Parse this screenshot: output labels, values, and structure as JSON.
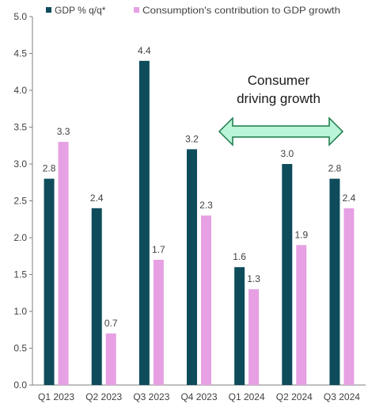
{
  "chart_data": {
    "type": "bar",
    "categories": [
      "Q1 2023",
      "Q2 2023",
      "Q3 2023",
      "Q4 2023",
      "Q1 2024",
      "Q2 2024",
      "Q3 2024"
    ],
    "series": [
      {
        "name": "GDP % q/q*",
        "color": "#0e4c5b",
        "values": [
          2.8,
          2.4,
          4.4,
          3.2,
          1.6,
          3.0,
          2.8
        ],
        "labels": [
          "2.8",
          "2.4",
          "4.4",
          "3.2",
          "1.6",
          "3.0",
          "2.8"
        ]
      },
      {
        "name": "Consumption's contribution to GDP growth",
        "color": "#e6a0e3",
        "values": [
          3.3,
          0.7,
          1.7,
          2.3,
          1.3,
          1.9,
          2.4
        ],
        "labels": [
          "3.3",
          "0.7",
          "1.7",
          "2.3",
          "1.3",
          "1.9",
          "2.4"
        ]
      }
    ],
    "ylim": [
      0,
      5
    ],
    "yticks": [
      "0.0",
      "0.5",
      "1.0",
      "1.5",
      "2.0",
      "2.5",
      "3.0",
      "3.5",
      "4.0",
      "4.5",
      "5.0"
    ],
    "grid": false,
    "legend_position": "top",
    "annotation": {
      "lines": [
        "Consumer",
        "driving growth"
      ],
      "arrow": "double-headed",
      "arrow_span": [
        "Q4 2023",
        "Q3 2024"
      ],
      "arrow_fill": "#b9f5d6",
      "arrow_stroke": "#1a7a4a"
    }
  }
}
